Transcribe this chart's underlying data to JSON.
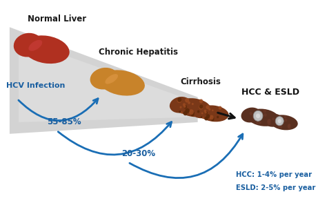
{
  "bg_color": "#ffffff",
  "labels": {
    "normal_liver": "Normal Liver",
    "hcv_infection": "HCV Infection",
    "chronic_hepatitis": "Chronic Hepatitis",
    "cirrhosis": "Cirrhosis",
    "hcc_esld": "HCC & ESLD",
    "pct_55_85": "55-85%",
    "pct_20_30": "20-30%",
    "hcc_rate": "HCC: 1-4% per year",
    "esld_rate": "ESLD: 2-5% per year"
  },
  "label_colors": {
    "normal_liver": "#1a1a1a",
    "hcv_infection": "#1a5fa0",
    "chronic_hepatitis": "#1a1a1a",
    "cirrhosis": "#1a1a1a",
    "hcc_esld": "#111111",
    "pct_55_85": "#1a5fa0",
    "pct_20_30": "#1a5fa0",
    "hcc_rate": "#1a5fa0",
    "esld_rate": "#1a5fa0"
  },
  "liver_colors": {
    "normal": "#b03020",
    "chronic": "#c8832a",
    "cirrhosis1": "#7a3818",
    "cirrhosis2": "#9b4a20",
    "hcc1": "#5a3020",
    "hcc2": "#6b3828",
    "hcc_nodule": "#c0c0c0"
  },
  "arrow_color": "#1a6eb5",
  "black_arrow_color": "#111111"
}
